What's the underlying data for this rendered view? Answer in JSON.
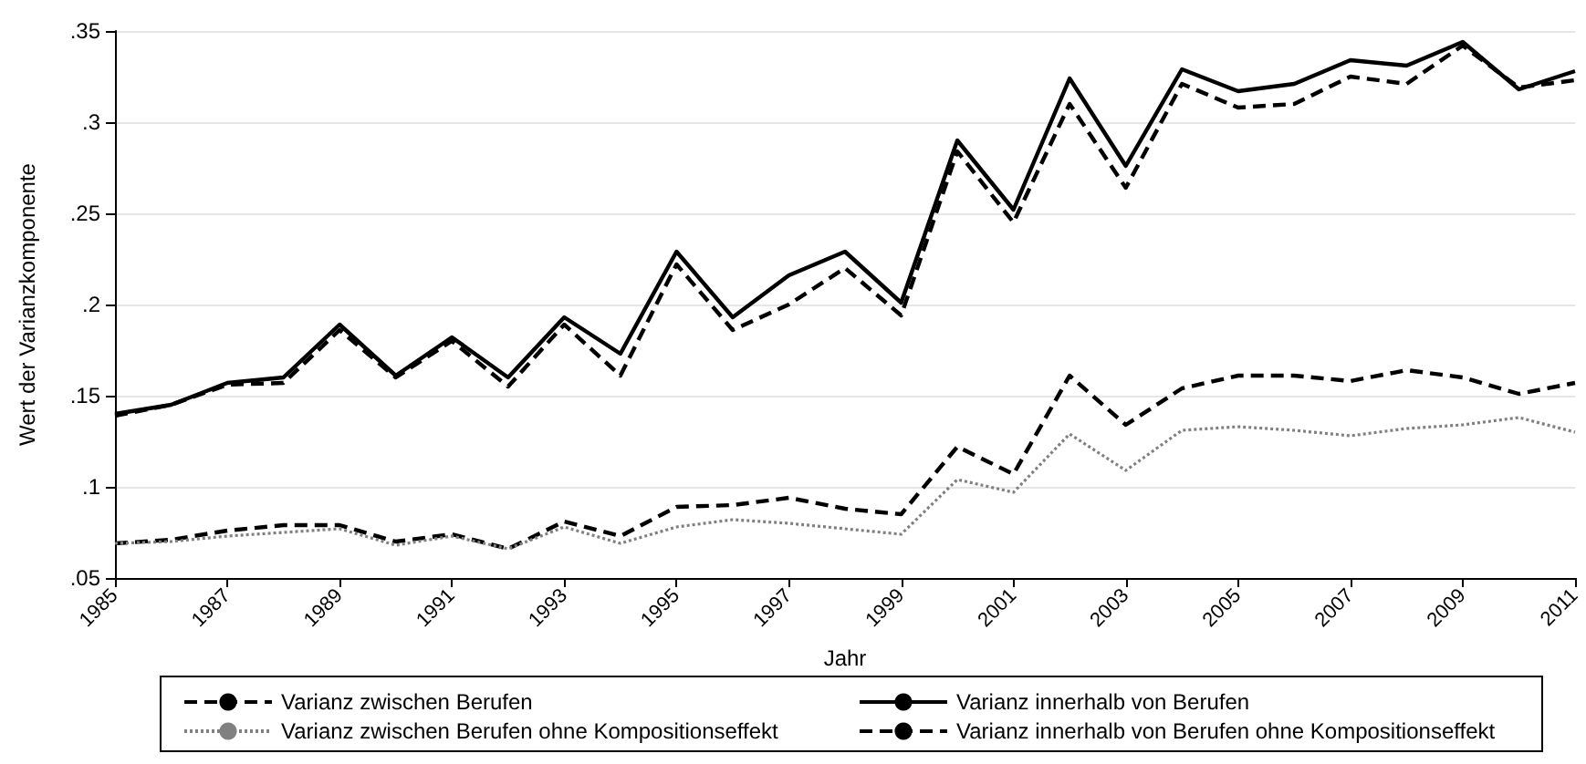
{
  "chart_data": {
    "type": "line",
    "xlabel": "Jahr",
    "ylabel": "Wert der Varianzkomponente",
    "x": [
      1985,
      1986,
      1987,
      1988,
      1989,
      1990,
      1991,
      1992,
      1993,
      1994,
      1995,
      1996,
      1997,
      1998,
      1999,
      2000,
      2001,
      2002,
      2003,
      2004,
      2005,
      2006,
      2007,
      2008,
      2009,
      2010,
      2011
    ],
    "xlim": [
      1985,
      2011
    ],
    "xticks": [
      1985,
      1987,
      1989,
      1991,
      1993,
      1995,
      1997,
      1999,
      2001,
      2003,
      2005,
      2007,
      2009,
      2011
    ],
    "ylim": [
      0.05,
      0.35
    ],
    "yticks": [
      {
        "value": 0.05,
        "label": ".05"
      },
      {
        "value": 0.1,
        "label": ".1"
      },
      {
        "value": 0.15,
        "label": ".15"
      },
      {
        "value": 0.2,
        "label": ".2"
      },
      {
        "value": 0.25,
        "label": ".25"
      },
      {
        "value": 0.3,
        "label": ".3"
      },
      {
        "value": 0.35,
        "label": ".35"
      }
    ],
    "grid": "y",
    "legend": "bottom",
    "series": [
      {
        "name": "Varianz zwischen Berufen",
        "color": "#000000",
        "line_style": "dashed",
        "values": [
          0.069,
          0.071,
          0.076,
          0.079,
          0.079,
          0.07,
          0.074,
          0.066,
          0.081,
          0.073,
          0.089,
          0.09,
          0.094,
          0.088,
          0.085,
          0.122,
          0.107,
          0.161,
          0.134,
          0.154,
          0.161,
          0.161,
          0.158,
          0.164,
          0.16,
          0.151,
          0.157
        ]
      },
      {
        "name": "Varianz innerhalb von Berufen",
        "color": "#000000",
        "line_style": "solid",
        "values": [
          0.14,
          0.145,
          0.157,
          0.16,
          0.189,
          0.161,
          0.182,
          0.16,
          0.193,
          0.173,
          0.229,
          0.193,
          0.216,
          0.229,
          0.201,
          0.29,
          0.252,
          0.324,
          0.276,
          0.329,
          0.317,
          0.321,
          0.334,
          0.331,
          0.344,
          0.318,
          0.328
        ]
      },
      {
        "name": "Varianz zwischen Berufen ohne Kompositionseffekt",
        "color": "#808080",
        "line_style": "dotted",
        "values": [
          0.069,
          0.07,
          0.073,
          0.075,
          0.077,
          0.068,
          0.073,
          0.066,
          0.078,
          0.069,
          0.078,
          0.082,
          0.08,
          0.077,
          0.074,
          0.104,
          0.097,
          0.129,
          0.109,
          0.131,
          0.133,
          0.131,
          0.128,
          0.132,
          0.134,
          0.138,
          0.13
        ]
      },
      {
        "name": "Varianz innerhalb von Berufen ohne Kompositionseffekt",
        "color": "#000000",
        "line_style": "dashed",
        "values": [
          0.139,
          0.145,
          0.156,
          0.157,
          0.186,
          0.16,
          0.18,
          0.155,
          0.189,
          0.161,
          0.222,
          0.186,
          0.2,
          0.22,
          0.194,
          0.284,
          0.245,
          0.31,
          0.264,
          0.321,
          0.308,
          0.31,
          0.325,
          0.321,
          0.342,
          0.319,
          0.323
        ]
      }
    ]
  }
}
